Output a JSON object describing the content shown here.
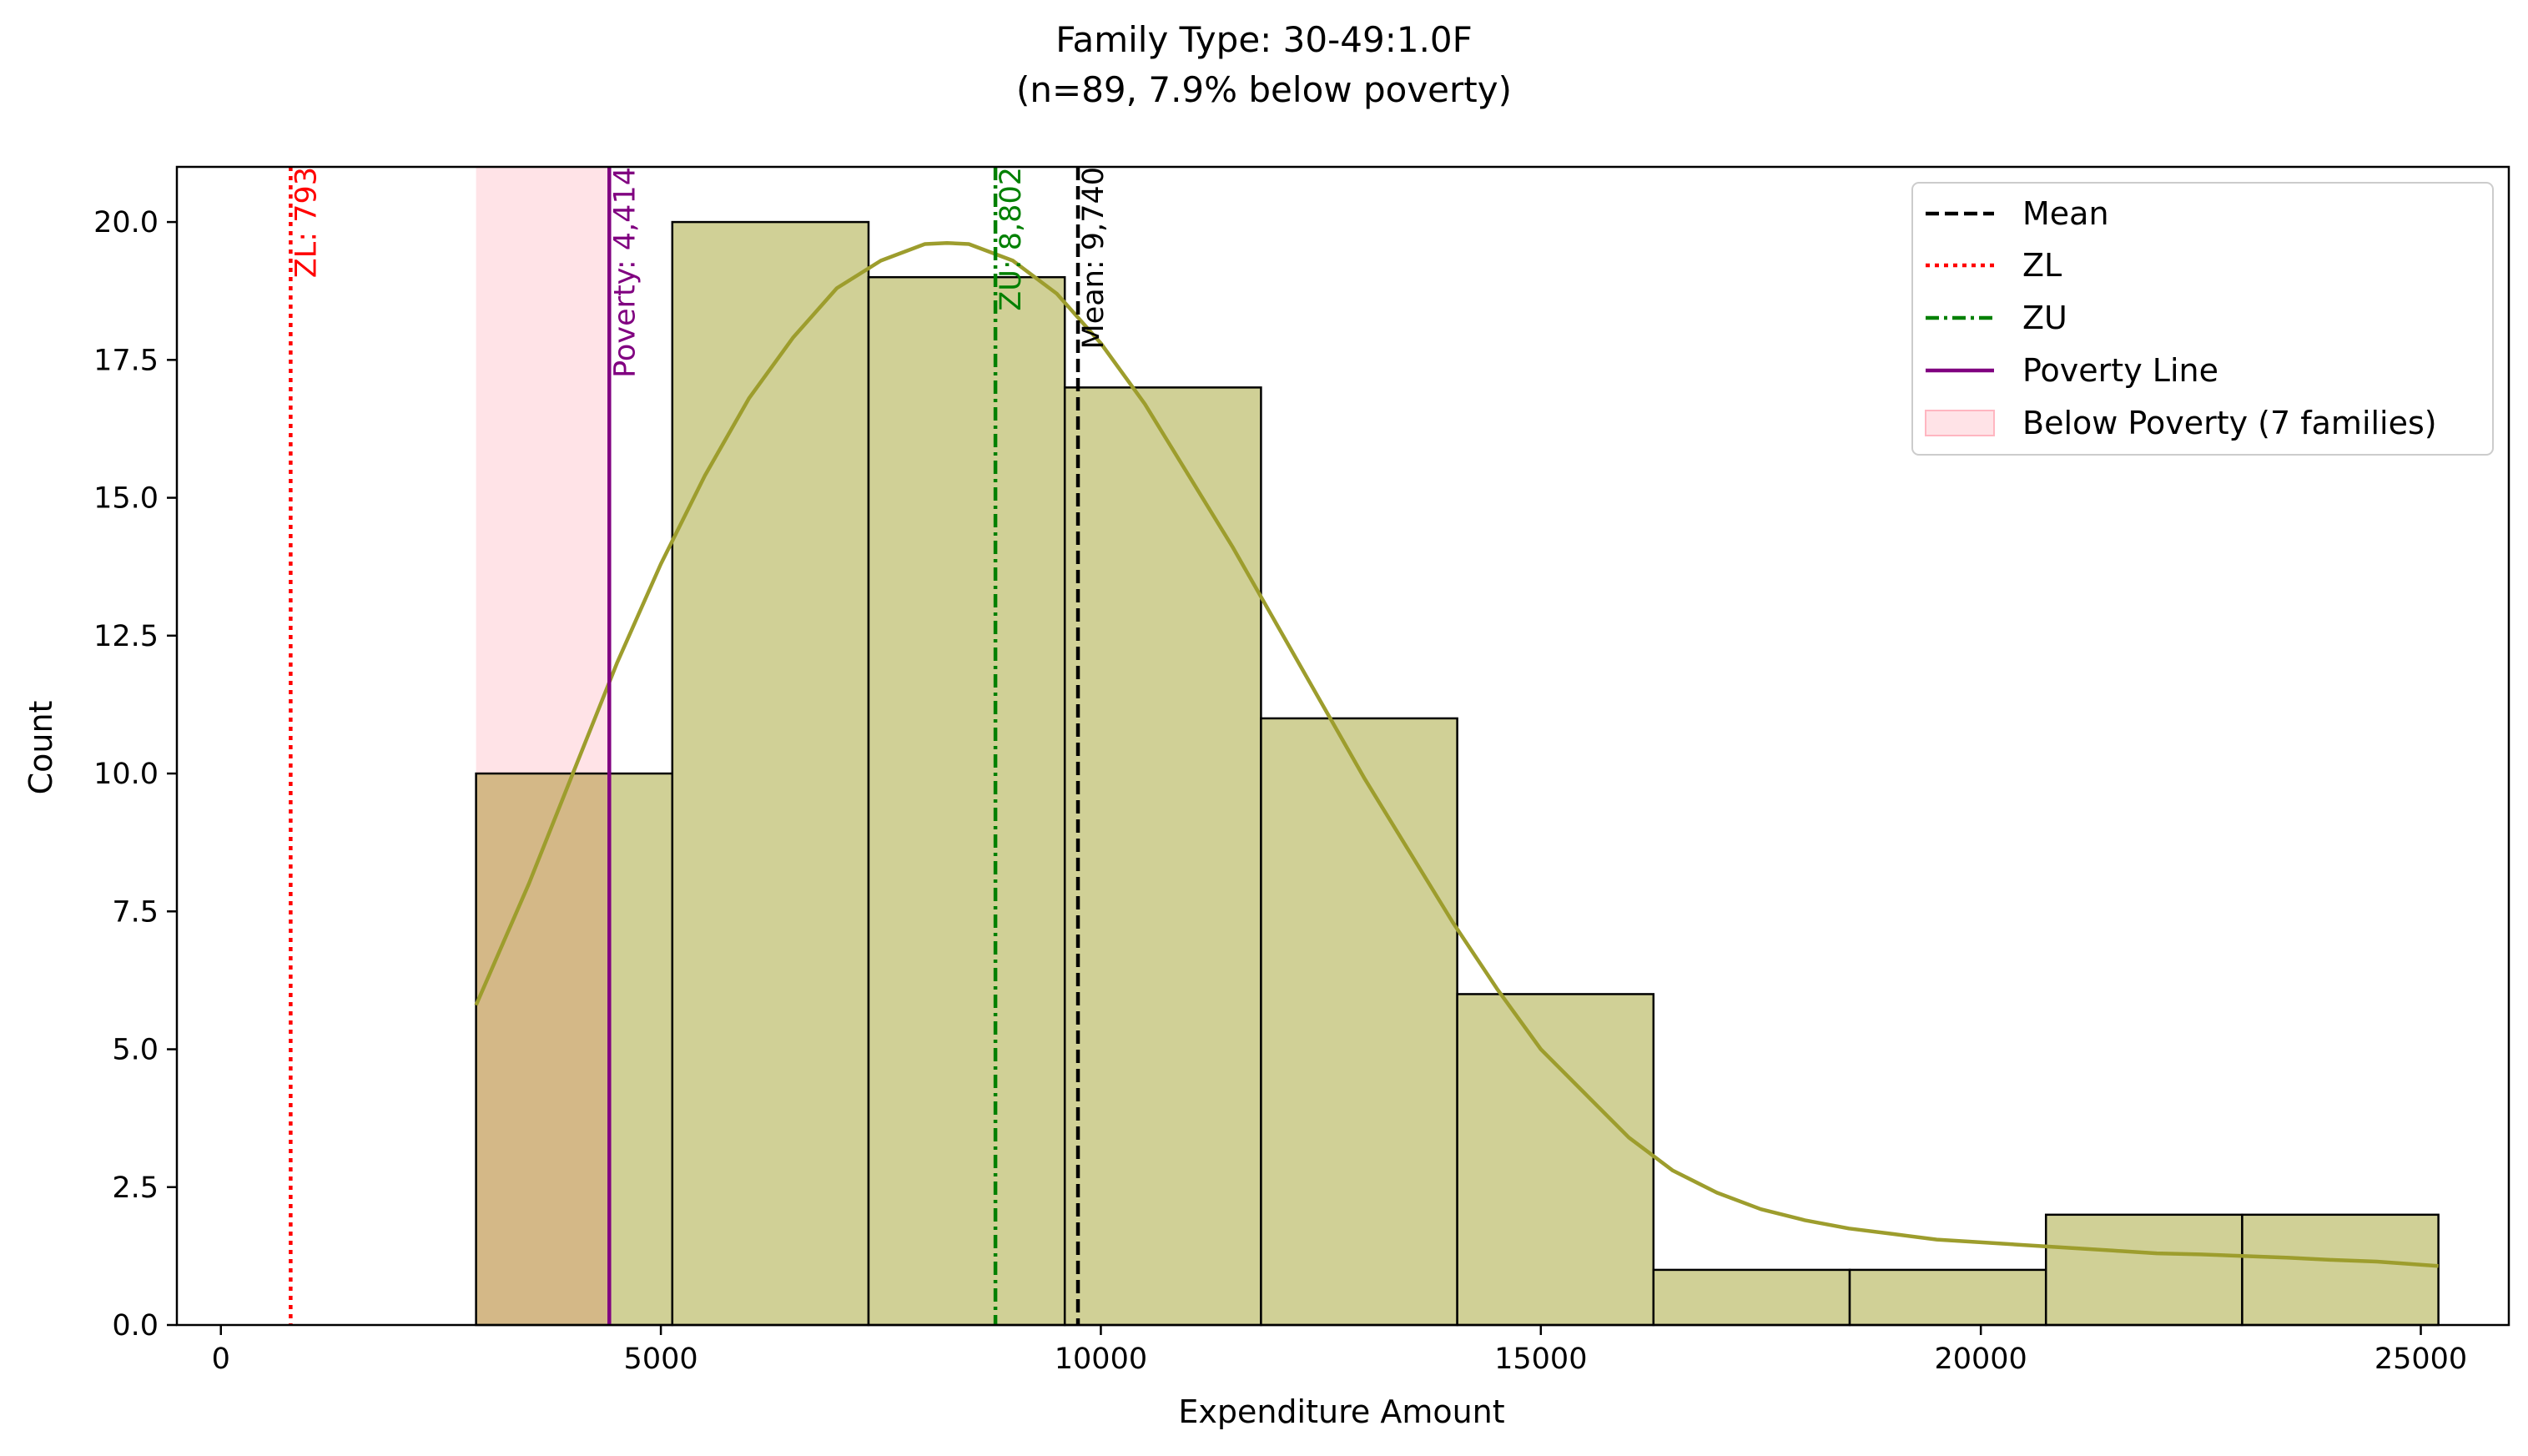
{
  "chart_data": {
    "type": "bar",
    "title": "Family Type: 30-49:1.0F",
    "subtitle": "(n=89, 7.9% below poverty)",
    "xlabel": "Expenditure Amount",
    "ylabel": "Count",
    "xlim": [
      -500,
      26000
    ],
    "ylim": [
      0,
      21
    ],
    "x_ticks": [
      0,
      5000,
      10000,
      15000,
      20000,
      25000
    ],
    "x_tick_labels": [
      "0",
      "5000",
      "10000",
      "15000",
      "20000",
      "25000"
    ],
    "y_ticks": [
      0,
      2.5,
      5,
      7.5,
      10,
      12.5,
      15,
      17.5,
      20
    ],
    "y_tick_labels": [
      "0.0",
      "2.5",
      "5.0",
      "7.5",
      "10.0",
      "12.5",
      "15.0",
      "17.5",
      "20.0"
    ],
    "bins": [
      {
        "x0": 2900,
        "x1": 5130,
        "count": 10
      },
      {
        "x0": 5130,
        "x1": 7360,
        "count": 20
      },
      {
        "x0": 7360,
        "x1": 9590,
        "count": 19
      },
      {
        "x0": 9590,
        "x1": 11820,
        "count": 17
      },
      {
        "x0": 11820,
        "x1": 14050,
        "count": 11
      },
      {
        "x0": 14050,
        "x1": 16280,
        "count": 6
      },
      {
        "x0": 16280,
        "x1": 18510,
        "count": 1
      },
      {
        "x0": 18510,
        "x1": 20740,
        "count": 1
      },
      {
        "x0": 20740,
        "x1": 22970,
        "count": 2
      },
      {
        "x0": 22970,
        "x1": 25200,
        "count": 2
      }
    ],
    "kde": {
      "x": [
        2900,
        3500,
        4000,
        4500,
        5000,
        5500,
        6000,
        6500,
        7000,
        7500,
        8000,
        8250,
        8500,
        9000,
        9500,
        10000,
        10500,
        11000,
        11500,
        12000,
        12500,
        13000,
        13500,
        14000,
        14500,
        15000,
        15500,
        16000,
        16500,
        17000,
        17500,
        18000,
        18500,
        19000,
        19500,
        20000,
        20500,
        21000,
        21500,
        22000,
        22500,
        23000,
        23500,
        24000,
        24500,
        25200
      ],
      "y": [
        5.8,
        8.0,
        10.0,
        12.0,
        13.8,
        15.4,
        16.8,
        17.9,
        18.8,
        19.3,
        19.6,
        19.62,
        19.6,
        19.3,
        18.7,
        17.8,
        16.7,
        15.4,
        14.1,
        12.7,
        11.3,
        9.9,
        8.6,
        7.3,
        6.1,
        5.0,
        4.2,
        3.4,
        2.8,
        2.4,
        2.1,
        1.9,
        1.75,
        1.65,
        1.55,
        1.5,
        1.45,
        1.4,
        1.35,
        1.3,
        1.28,
        1.25,
        1.22,
        1.18,
        1.15,
        1.07
      ]
    },
    "below_poverty_band": {
      "x0": 2900,
      "x1": 4414
    },
    "vlines": [
      {
        "name": "Mean",
        "x": 9740,
        "label": "Mean: 9,740",
        "color": "#000000",
        "style": "dashed"
      },
      {
        "name": "ZL",
        "x": 793,
        "label": "ZL: 793",
        "color": "#ff0000",
        "style": "dotted"
      },
      {
        "name": "ZU",
        "x": 8802,
        "label": "ZU: 8,802",
        "color": "#008000",
        "style": "dashdot"
      },
      {
        "name": "Poverty Line",
        "x": 4414,
        "label": "Poverty: 4,414",
        "color": "#800080",
        "style": "solid"
      }
    ],
    "legend": {
      "position": "top-right",
      "entries": [
        "Mean",
        "ZL",
        "ZU",
        "Poverty Line",
        "Below Poverty (7 families)"
      ]
    },
    "colors": {
      "bar_fill": "#d0d096",
      "bar_stroke": "#000000",
      "kde_line": "#9d9d2d",
      "poverty_band": "#ffb6c1",
      "overlap_fill": "#d4b887"
    }
  }
}
